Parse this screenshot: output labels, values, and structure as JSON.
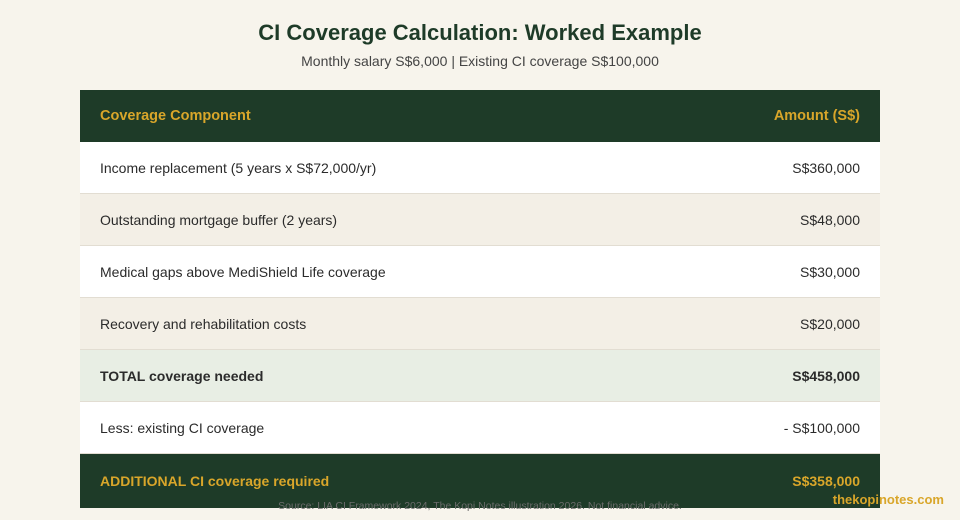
{
  "title": "CI Coverage Calculation: Worked Example",
  "subtitle": "Monthly salary S$6,000 | Existing CI coverage S$100,000",
  "table": {
    "headers": {
      "component": "Coverage Component",
      "amount": "Amount (S$)"
    },
    "rows": [
      {
        "label": "Income replacement (5 years x S$72,000/yr)",
        "amount": "S$360,000"
      },
      {
        "label": "Outstanding mortgage buffer (2 years)",
        "amount": "S$48,000"
      },
      {
        "label": "Medical gaps above MediShield Life coverage",
        "amount": "S$30,000"
      },
      {
        "label": "Recovery and rehabilitation costs",
        "amount": "S$20,000"
      },
      {
        "label": "TOTAL coverage needed",
        "amount": "S$458,000"
      },
      {
        "label": "Less: existing CI coverage",
        "amount": "- S$100,000"
      },
      {
        "label": "ADDITIONAL CI coverage required",
        "amount": "S$358,000"
      }
    ]
  },
  "source": "Source: LIA CI Framework 2024, The Kopi Notes illustration 2026. Not financial advice.",
  "brand": "thekopinotes.com"
}
